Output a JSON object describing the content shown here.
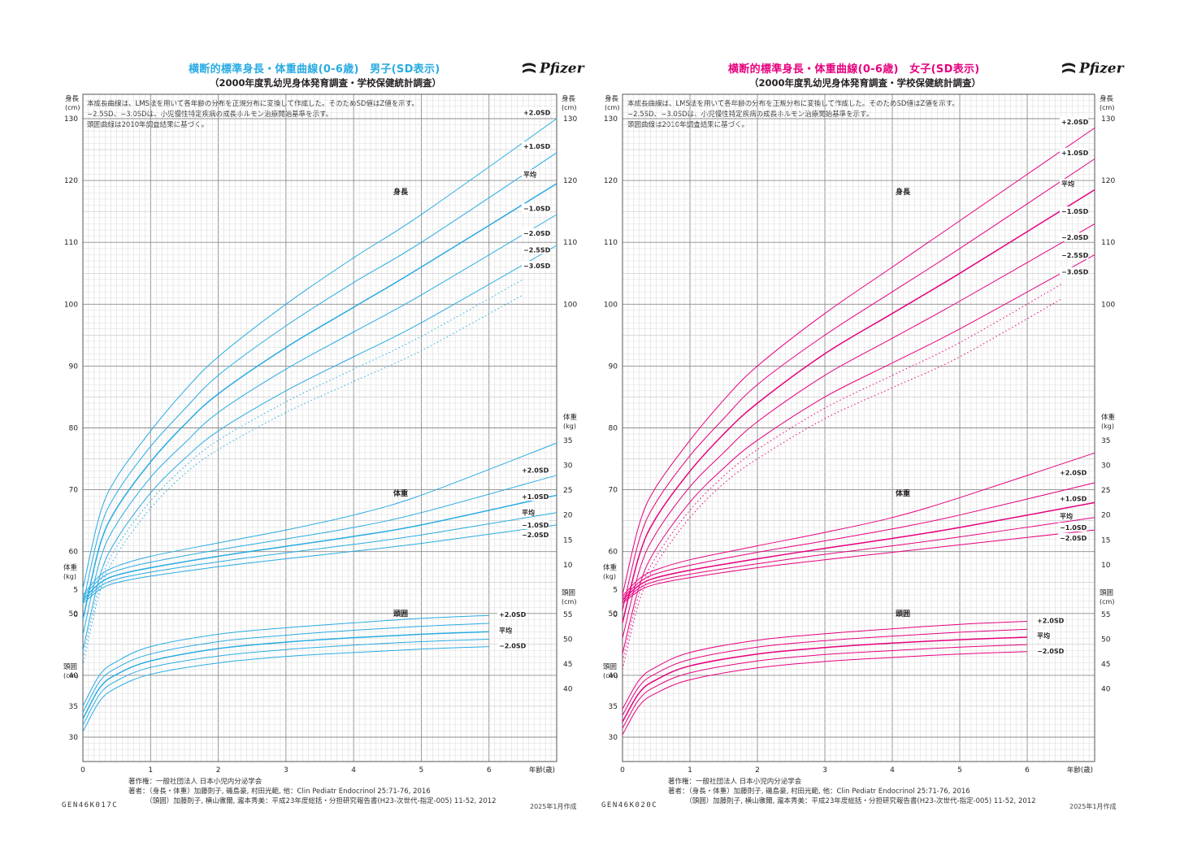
{
  "charts": [
    {
      "id": "boys",
      "title": "横断的標準身長・体重曲線(0-6歳)　男子(SD表示)",
      "subtitle": "（2000年度乳幼児身体発育調査・学校保健統計調査）",
      "logo": "Pfizer",
      "color": "#29abe2",
      "notes": [
        "本成長曲線は、LMS法を用いて各年齢の分布を正規分布に変換して作成した。そのためSD値はZ値を示す。",
        "−2.5SD、−3.0SDは、小児慢性特定疾病の成長ホルモン治療開始基準を示す。",
        "頭囲曲線は2010年調査結果に基づく。"
      ],
      "footer": [
        "著作権：一般社団法人 日本小児内分泌学会",
        "著者：（身長・体重）加藤則子, 磯島豪, 村田光範, 他：Clin Pediatr Endocrinol 25:71-76, 2016",
        "　　　（頭囲）加藤則子, 横山徹爾, 瀧本秀美：平成23年度総括・分担研究報告書(H23-次世代-指定-005) 11-52, 2012"
      ],
      "code": "GEN46K017C",
      "date": "2025年1月作成"
    },
    {
      "id": "girls",
      "title": "横断的標準身長・体重曲線(0-6歳)　女子(SD表示)",
      "subtitle": "（2000年度乳幼児身体発育調査・学校保健統計調査）",
      "logo": "Pfizer",
      "color": "#e6007e",
      "notes": [
        "本成長曲線は、LMS法を用いて各年齢の分布を正規分布に変換して作成した。そのためSD値はZ値を示す。",
        "−2.5SD、−3.0SDは、小児慢性特定疾病の成長ホルモン治療開始基準を示す。",
        "頭囲曲線は2010年調査結果に基づく。"
      ],
      "footer": [
        "著作権：一般社団法人 日本小児内分泌学会",
        "著者：（身長・体重）加藤則子, 磯島豪, 村田光範, 他：Clin Pediatr Endocrinol 25:71-76, 2016",
        "　　　（頭囲）加藤則子, 横山徹爾, 瀧本秀美：平成23年度総括・分担研究報告書(H23-次世代-指定-005) 11-52, 2012"
      ],
      "code": "GEN46K020C",
      "date": "2025年1月作成"
    }
  ],
  "chart_data": [
    {
      "type": "line",
      "title": "横断的標準身長・体重曲線(0-6歳)　男子(SD表示)",
      "x_label": "年齢(歳)",
      "x_ticks": [
        "0",
        "1",
        "2",
        "3",
        "4",
        "5",
        "6"
      ],
      "x_range": [
        0,
        7
      ],
      "height_axis": {
        "label": "身長",
        "unit": "(cm)",
        "ticks": [
          "30",
          "40",
          "50",
          "60",
          "70",
          "80",
          "90",
          "100",
          "110",
          "120",
          "130"
        ]
      },
      "weight_axis": {
        "label": "体重",
        "unit": "(kg)",
        "ticks": [
          "0",
          "5",
          "10",
          "15",
          "20",
          "25",
          "30",
          "35"
        ]
      },
      "head_axis": {
        "label": "頭囲",
        "unit": "(cm)",
        "ticks": [
          "40",
          "45",
          "50",
          "55"
        ]
      },
      "left_weight_ticks": [
        "0",
        "5"
      ],
      "left_head_ticks": [
        "30",
        "35",
        "40"
      ],
      "section_labels": {
        "height": "身長",
        "weight": "体重",
        "head": "頭囲"
      },
      "height_series": [
        {
          "name": "+2.0SD",
          "x": [
            0,
            0.25,
            0.5,
            1,
            1.5,
            2,
            3,
            4,
            5,
            7
          ],
          "y": [
            54.0,
            66.0,
            72.0,
            79.5,
            86.0,
            91.5,
            100.0,
            107.5,
            114.5,
            130.0
          ]
        },
        {
          "name": "+1.0SD",
          "x": [
            0,
            0.25,
            0.5,
            1,
            1.5,
            2,
            3,
            4,
            5,
            7
          ],
          "y": [
            51.5,
            63.5,
            69.5,
            77.0,
            83.0,
            88.5,
            96.5,
            103.5,
            110.0,
            124.5
          ]
        },
        {
          "name": "平均",
          "x": [
            0,
            0.25,
            0.5,
            1,
            1.5,
            2,
            3,
            4,
            5,
            7
          ],
          "y": [
            49.0,
            61.0,
            67.0,
            74.5,
            80.5,
            85.5,
            93.0,
            99.5,
            106.0,
            119.5
          ]
        },
        {
          "name": "−1.0SD",
          "x": [
            0,
            0.25,
            0.5,
            1,
            1.5,
            2,
            3,
            4,
            5,
            7
          ],
          "y": [
            46.5,
            58.5,
            64.5,
            72.0,
            77.5,
            82.5,
            89.5,
            95.5,
            101.5,
            114.5
          ]
        },
        {
          "name": "−2.0SD",
          "x": [
            0,
            0.25,
            0.5,
            1,
            1.5,
            2,
            3,
            4,
            5,
            7
          ],
          "y": [
            44.0,
            56.0,
            62.0,
            69.5,
            75.0,
            79.5,
            86.0,
            91.5,
            97.0,
            109.5
          ]
        },
        {
          "name": "−2.5SD",
          "dashed": true,
          "x": [
            0,
            0.25,
            0.5,
            1,
            1.5,
            2,
            3,
            4,
            5,
            6.5
          ],
          "y": [
            42.8,
            54.7,
            60.8,
            68.2,
            73.7,
            78.0,
            84.2,
            89.5,
            94.8,
            104.0
          ]
        },
        {
          "name": "−3.0SD",
          "dashed": true,
          "x": [
            0,
            0.25,
            0.5,
            1,
            1.5,
            2,
            3,
            4,
            5,
            6.5
          ],
          "y": [
            41.5,
            53.5,
            59.5,
            67.0,
            72.5,
            76.5,
            82.5,
            87.5,
            92.5,
            101.5
          ]
        }
      ],
      "height_labels_y": [
        131,
        125.5,
        121,
        115.5,
        111.5,
        108.8,
        106.2
      ],
      "weight_series": [
        {
          "name": "+2.0SD",
          "x": [
            0,
            0.25,
            0.5,
            1,
            2,
            3,
            4,
            5,
            7
          ],
          "y": [
            3.9,
            7.8,
            9.7,
            11.7,
            14.4,
            17.0,
            20.0,
            24.0,
            34.5
          ]
        },
        {
          "name": "+1.0SD",
          "x": [
            0,
            0.25,
            0.5,
            1,
            2,
            3,
            4,
            5,
            7
          ],
          "y": [
            3.5,
            7.1,
            8.8,
            10.5,
            13.0,
            15.2,
            17.5,
            20.5,
            28.0
          ]
        },
        {
          "name": "平均",
          "x": [
            0,
            0.25,
            0.5,
            1,
            2,
            3,
            4,
            5,
            7
          ],
          "y": [
            3.0,
            6.3,
            7.9,
            9.4,
            11.7,
            13.7,
            15.7,
            18.0,
            24.0
          ]
        },
        {
          "name": "−1.0SD",
          "x": [
            0,
            0.25,
            0.5,
            1,
            2,
            3,
            4,
            5,
            7
          ],
          "y": [
            2.6,
            5.6,
            7.1,
            8.5,
            10.6,
            12.4,
            14.1,
            16.0,
            20.5
          ]
        },
        {
          "name": "−2.0SD",
          "x": [
            0,
            0.25,
            0.5,
            1,
            2,
            3,
            4,
            5,
            7
          ],
          "y": [
            2.2,
            5.0,
            6.4,
            7.7,
            9.6,
            11.2,
            12.7,
            14.3,
            18.0
          ]
        }
      ],
      "weight_labels_y": [
        29.0,
        23.7,
        20.5,
        18.0,
        16.0
      ],
      "head_series": [
        {
          "name": "+2.0SD",
          "x": [
            0,
            0.25,
            0.5,
            1,
            2,
            3,
            4,
            5,
            6
          ],
          "y": [
            36.5,
            42.8,
            45.5,
            48.5,
            51.0,
            52.3,
            53.3,
            54.2,
            54.8
          ]
        },
        {
          "name": "+1.0SD",
          "x": [
            0,
            0.25,
            0.5,
            1,
            2,
            3,
            4,
            5,
            6
          ],
          "y": [
            35.2,
            41.5,
            44.2,
            47.0,
            49.5,
            50.8,
            51.8,
            52.6,
            53.2
          ]
        },
        {
          "name": "平均",
          "x": [
            0,
            0.25,
            0.5,
            1,
            2,
            3,
            4,
            5,
            6
          ],
          "y": [
            33.9,
            40.2,
            42.9,
            45.6,
            48.1,
            49.4,
            50.3,
            51.0,
            51.5
          ]
        },
        {
          "name": "−1.0SD",
          "x": [
            0,
            0.25,
            0.5,
            1,
            2,
            3,
            4,
            5,
            6
          ],
          "y": [
            32.6,
            38.9,
            41.6,
            44.3,
            46.6,
            47.9,
            48.8,
            49.5,
            50.0
          ]
        },
        {
          "name": "−2.0SD",
          "x": [
            0,
            0.25,
            0.5,
            1,
            2,
            3,
            4,
            5,
            6
          ],
          "y": [
            31.3,
            37.5,
            40.2,
            42.9,
            45.2,
            46.5,
            47.3,
            48.0,
            48.5
          ]
        }
      ],
      "head_labels": [
        "+2.0SD",
        "平均",
        "−2.0SD"
      ],
      "head_labels_y": [
        55.0,
        51.8,
        48.7
      ]
    },
    {
      "type": "line",
      "title": "横断的標準身長・体重曲線(0-6歳)　女子(SD表示)",
      "x_label": "年齢(歳)",
      "x_ticks": [
        "0",
        "1",
        "2",
        "3",
        "4",
        "5",
        "6"
      ],
      "x_range": [
        0,
        7
      ],
      "height_axis": {
        "label": "身長",
        "unit": "(cm)",
        "ticks": [
          "30",
          "40",
          "50",
          "60",
          "70",
          "80",
          "90",
          "100",
          "110",
          "120",
          "130"
        ]
      },
      "weight_axis": {
        "label": "体重",
        "unit": "(kg)",
        "ticks": [
          "0",
          "5",
          "10",
          "15",
          "20",
          "25",
          "30",
          "35"
        ]
      },
      "head_axis": {
        "label": "頭囲",
        "unit": "(cm)",
        "ticks": [
          "40",
          "45",
          "50",
          "55"
        ]
      },
      "left_weight_ticks": [
        "0",
        "5"
      ],
      "left_head_ticks": [
        "30",
        "35",
        "40"
      ],
      "section_labels": {
        "height": "身長",
        "weight": "体重",
        "head": "頭囲"
      },
      "height_series": [
        {
          "name": "+2.0SD",
          "x": [
            0,
            0.25,
            0.5,
            1,
            1.5,
            2,
            3,
            4,
            5,
            7
          ],
          "y": [
            53.0,
            64.5,
            70.5,
            78.0,
            84.5,
            90.0,
            98.5,
            106.0,
            113.5,
            128.5
          ]
        },
        {
          "name": "+1.0SD",
          "x": [
            0,
            0.25,
            0.5,
            1,
            1.5,
            2,
            3,
            4,
            5,
            7
          ],
          "y": [
            50.5,
            62.0,
            68.0,
            75.5,
            81.5,
            87.0,
            95.0,
            102.0,
            109.0,
            123.5
          ]
        },
        {
          "name": "平均",
          "x": [
            0,
            0.25,
            0.5,
            1,
            1.5,
            2,
            3,
            4,
            5,
            7
          ],
          "y": [
            48.5,
            59.5,
            65.5,
            73.0,
            79.0,
            84.0,
            92.0,
            98.5,
            105.0,
            118.5
          ]
        },
        {
          "name": "−1.0SD",
          "x": [
            0,
            0.25,
            0.5,
            1,
            1.5,
            2,
            3,
            4,
            5,
            7
          ],
          "y": [
            46.0,
            57.0,
            63.0,
            70.5,
            76.0,
            81.0,
            88.5,
            94.5,
            100.5,
            113.0
          ]
        },
        {
          "name": "−2.0SD",
          "x": [
            0,
            0.25,
            0.5,
            1,
            1.5,
            2,
            3,
            4,
            5,
            7
          ],
          "y": [
            43.5,
            54.5,
            60.5,
            68.0,
            73.5,
            78.0,
            85.0,
            90.5,
            96.0,
            108.0
          ]
        },
        {
          "name": "−2.5SD",
          "dashed": true,
          "x": [
            0,
            0.25,
            0.5,
            1,
            1.5,
            2,
            3,
            4,
            5,
            6.5
          ],
          "y": [
            42.3,
            53.3,
            59.2,
            66.7,
            72.2,
            76.5,
            83.2,
            88.5,
            93.8,
            103.2
          ]
        },
        {
          "name": "−3.0SD",
          "dashed": true,
          "x": [
            0,
            0.25,
            0.5,
            1,
            1.5,
            2,
            3,
            4,
            5,
            6.5
          ],
          "y": [
            41.0,
            52.0,
            58.0,
            65.5,
            71.0,
            75.0,
            81.5,
            86.5,
            91.5,
            100.8
          ]
        }
      ],
      "height_labels_y": [
        129.5,
        124.5,
        119.5,
        115.0,
        110.8,
        107.9,
        105.2
      ],
      "weight_series": [
        {
          "name": "+2.0SD",
          "x": [
            0,
            0.25,
            0.5,
            1,
            2,
            3,
            4,
            5,
            7
          ],
          "y": [
            3.7,
            7.2,
            9.0,
            11.0,
            13.8,
            16.5,
            19.5,
            23.5,
            32.5
          ]
        },
        {
          "name": "+1.0SD",
          "x": [
            0,
            0.25,
            0.5,
            1,
            2,
            3,
            4,
            5,
            7
          ],
          "y": [
            3.3,
            6.5,
            8.2,
            9.9,
            12.5,
            14.8,
            17.2,
            20.0,
            26.5
          ]
        },
        {
          "name": "平均",
          "x": [
            0,
            0.25,
            0.5,
            1,
            2,
            3,
            4,
            5,
            7
          ],
          "y": [
            2.9,
            5.9,
            7.4,
            8.9,
            11.2,
            13.3,
            15.3,
            17.5,
            22.5
          ]
        },
        {
          "name": "−1.0SD",
          "x": [
            0,
            0.25,
            0.5,
            1,
            2,
            3,
            4,
            5,
            7
          ],
          "y": [
            2.5,
            5.3,
            6.7,
            8.1,
            10.2,
            12.1,
            13.8,
            15.6,
            19.5
          ]
        },
        {
          "name": "−2.0SD",
          "x": [
            0,
            0.25,
            0.5,
            1,
            2,
            3,
            4,
            5,
            7
          ],
          "y": [
            2.2,
            4.8,
            6.1,
            7.4,
            9.4,
            11.0,
            12.5,
            14.0,
            17.0
          ]
        }
      ],
      "weight_labels_y": [
        28.5,
        23.3,
        19.8,
        17.5,
        15.4
      ],
      "head_series": [
        {
          "name": "+2.0SD",
          "x": [
            0,
            0.25,
            0.5,
            1,
            2,
            3,
            4,
            5,
            6
          ],
          "y": [
            35.9,
            41.8,
            44.4,
            47.3,
            49.8,
            51.1,
            52.1,
            53.0,
            53.6
          ]
        },
        {
          "name": "+1.0SD",
          "x": [
            0,
            0.25,
            0.5,
            1,
            2,
            3,
            4,
            5,
            6
          ],
          "y": [
            34.6,
            40.5,
            43.1,
            45.9,
            48.4,
            49.7,
            50.6,
            51.4,
            52.0
          ]
        },
        {
          "name": "平均",
          "x": [
            0,
            0.25,
            0.5,
            1,
            2,
            3,
            4,
            5,
            6
          ],
          "y": [
            33.3,
            39.2,
            41.8,
            44.6,
            47.0,
            48.3,
            49.2,
            49.9,
            50.4
          ]
        },
        {
          "name": "−1.0SD",
          "x": [
            0,
            0.25,
            0.5,
            1,
            2,
            3,
            4,
            5,
            6
          ],
          "y": [
            32.0,
            37.9,
            40.5,
            43.2,
            45.6,
            46.9,
            47.7,
            48.4,
            48.9
          ]
        },
        {
          "name": "−2.0SD",
          "x": [
            0,
            0.25,
            0.5,
            1,
            2,
            3,
            4,
            5,
            6
          ],
          "y": [
            30.7,
            36.6,
            39.1,
            41.8,
            44.2,
            45.5,
            46.3,
            47.0,
            47.5
          ]
        }
      ],
      "head_labels": [
        "+2.0SD",
        "平均",
        "−2.0SD"
      ],
      "head_labels_y": [
        53.8,
        50.7,
        47.6
      ]
    }
  ]
}
